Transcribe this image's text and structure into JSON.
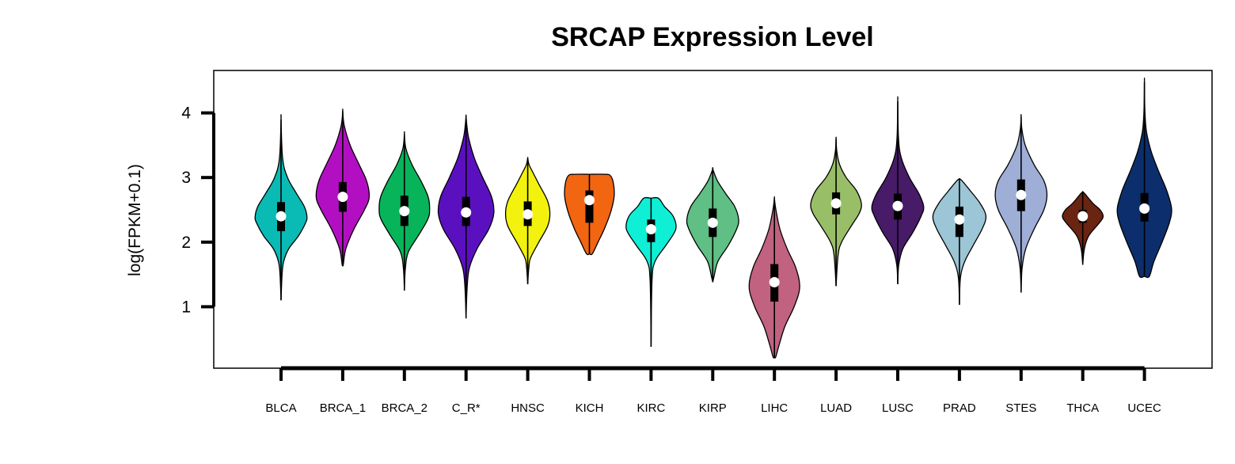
{
  "chart_data": {
    "type": "violin",
    "title": "SRCAP Expression Level",
    "xlabel": "",
    "ylabel": "log(FPKM+0.1)",
    "ylim": [
      0,
      4.55
    ],
    "yticks": [
      1,
      2,
      3,
      4
    ],
    "grid": false,
    "legend": "none",
    "categories": [
      "BLCA",
      "BRCA_1",
      "BRCA_2",
      "C_R*",
      "HNSC",
      "KICH",
      "KIRC",
      "KIRP",
      "LIHC",
      "LUAD",
      "LUSC",
      "PRAD",
      "STES",
      "THCA",
      "UCEC"
    ],
    "colors": [
      "#0ABAB5",
      "#B30FC2",
      "#08B45A",
      "#5B10BF",
      "#F2F20E",
      "#F26511",
      "#0FEFD6",
      "#5FBF84",
      "#C06280",
      "#98BE67",
      "#471B68",
      "#9CC5D5",
      "#9FAED6",
      "#6A2412",
      "#0C2E6C"
    ],
    "violins": [
      {
        "min": 1.1,
        "max": 3.9,
        "q1": 2.17,
        "median": 2.4,
        "q3": 2.62,
        "width": 0.42,
        "profile": [
          [
            1.5,
            0.04
          ],
          [
            1.7,
            0.1
          ],
          [
            1.9,
            0.3
          ],
          [
            2.1,
            0.68
          ],
          [
            2.3,
            0.95
          ],
          [
            2.4,
            1.0
          ],
          [
            2.55,
            0.9
          ],
          [
            2.75,
            0.6
          ],
          [
            3.0,
            0.25
          ],
          [
            3.3,
            0.06
          ]
        ]
      },
      {
        "min": 1.65,
        "max": 4.03,
        "q1": 2.47,
        "median": 2.7,
        "q3": 2.93,
        "width": 0.43,
        "profile": [
          [
            1.65,
            0.02
          ],
          [
            1.9,
            0.12
          ],
          [
            2.2,
            0.42
          ],
          [
            2.5,
            0.82
          ],
          [
            2.7,
            1.0
          ],
          [
            2.95,
            0.9
          ],
          [
            3.2,
            0.62
          ],
          [
            3.5,
            0.28
          ],
          [
            3.8,
            0.06
          ]
        ]
      },
      {
        "min": 1.25,
        "max": 3.68,
        "q1": 2.25,
        "median": 2.48,
        "q3": 2.72,
        "width": 0.41,
        "profile": [
          [
            1.6,
            0.04
          ],
          [
            1.85,
            0.16
          ],
          [
            2.1,
            0.55
          ],
          [
            2.35,
            0.92
          ],
          [
            2.5,
            1.0
          ],
          [
            2.7,
            0.94
          ],
          [
            2.95,
            0.65
          ],
          [
            3.2,
            0.3
          ],
          [
            3.45,
            0.06
          ]
        ]
      },
      {
        "min": 0.82,
        "max": 3.95,
        "q1": 2.25,
        "median": 2.46,
        "q3": 2.7,
        "width": 0.45,
        "profile": [
          [
            1.3,
            0.04
          ],
          [
            1.6,
            0.12
          ],
          [
            1.9,
            0.4
          ],
          [
            2.2,
            0.82
          ],
          [
            2.45,
            1.0
          ],
          [
            2.7,
            0.92
          ],
          [
            3.0,
            0.6
          ],
          [
            3.3,
            0.3
          ],
          [
            3.6,
            0.1
          ],
          [
            3.8,
            0.03
          ]
        ]
      },
      {
        "min": 1.35,
        "max": 3.3,
        "q1": 2.25,
        "median": 2.43,
        "q3": 2.63,
        "width": 0.36,
        "profile": [
          [
            1.6,
            0.05
          ],
          [
            1.75,
            0.12
          ],
          [
            2.0,
            0.5
          ],
          [
            2.25,
            0.9
          ],
          [
            2.45,
            1.0
          ],
          [
            2.65,
            0.88
          ],
          [
            2.9,
            0.5
          ],
          [
            3.1,
            0.2
          ],
          [
            3.2,
            0.06
          ]
        ]
      },
      {
        "min": 1.82,
        "max": 3.05,
        "q1": 2.3,
        "median": 2.65,
        "q3": 2.8,
        "width": 0.4,
        "profile": [
          [
            1.82,
            0.12
          ],
          [
            2.0,
            0.35
          ],
          [
            2.2,
            0.6
          ],
          [
            2.45,
            0.85
          ],
          [
            2.7,
            1.0
          ],
          [
            2.9,
            0.98
          ],
          [
            3.03,
            0.85
          ],
          [
            3.05,
            0.6
          ]
        ]
      },
      {
        "min": 0.38,
        "max": 2.68,
        "q1": 2.0,
        "median": 2.2,
        "q3": 2.35,
        "width": 0.4,
        "profile": [
          [
            1.4,
            0.04
          ],
          [
            1.7,
            0.16
          ],
          [
            1.95,
            0.6
          ],
          [
            2.2,
            1.0
          ],
          [
            2.4,
            0.9
          ],
          [
            2.55,
            0.55
          ],
          [
            2.68,
            0.3
          ]
        ]
      },
      {
        "min": 1.38,
        "max": 3.13,
        "q1": 2.08,
        "median": 2.3,
        "q3": 2.52,
        "width": 0.42,
        "profile": [
          [
            1.45,
            0.04
          ],
          [
            1.7,
            0.2
          ],
          [
            1.95,
            0.6
          ],
          [
            2.2,
            0.92
          ],
          [
            2.35,
            1.0
          ],
          [
            2.55,
            0.85
          ],
          [
            2.75,
            0.5
          ],
          [
            2.95,
            0.18
          ]
        ]
      },
      {
        "min": 0.22,
        "max": 2.68,
        "q1": 1.08,
        "median": 1.38,
        "q3": 1.66,
        "width": 0.41,
        "profile": [
          [
            0.22,
            0.05
          ],
          [
            0.4,
            0.18
          ],
          [
            0.7,
            0.42
          ],
          [
            1.0,
            0.78
          ],
          [
            1.3,
            1.0
          ],
          [
            1.6,
            0.85
          ],
          [
            1.9,
            0.5
          ],
          [
            2.2,
            0.22
          ],
          [
            2.5,
            0.06
          ]
        ]
      },
      {
        "min": 1.32,
        "max": 3.6,
        "q1": 2.43,
        "median": 2.6,
        "q3": 2.77,
        "width": 0.41,
        "profile": [
          [
            1.8,
            0.08
          ],
          [
            2.0,
            0.22
          ],
          [
            2.25,
            0.6
          ],
          [
            2.45,
            0.92
          ],
          [
            2.6,
            1.0
          ],
          [
            2.8,
            0.8
          ],
          [
            3.0,
            0.4
          ],
          [
            3.2,
            0.14
          ],
          [
            3.4,
            0.03
          ]
        ]
      },
      {
        "min": 1.35,
        "max": 4.18,
        "q1": 2.35,
        "median": 2.56,
        "q3": 2.75,
        "width": 0.42,
        "profile": [
          [
            1.65,
            0.04
          ],
          [
            1.9,
            0.2
          ],
          [
            2.15,
            0.58
          ],
          [
            2.4,
            0.9
          ],
          [
            2.55,
            1.0
          ],
          [
            2.75,
            0.82
          ],
          [
            3.0,
            0.45
          ],
          [
            3.3,
            0.14
          ],
          [
            3.6,
            0.03
          ]
        ]
      },
      {
        "min": 1.03,
        "max": 2.98,
        "q1": 2.08,
        "median": 2.35,
        "q3": 2.55,
        "width": 0.43,
        "profile": [
          [
            1.45,
            0.04
          ],
          [
            1.7,
            0.2
          ],
          [
            1.95,
            0.52
          ],
          [
            2.2,
            0.85
          ],
          [
            2.4,
            1.0
          ],
          [
            2.6,
            0.78
          ],
          [
            2.8,
            0.4
          ],
          [
            2.95,
            0.1
          ]
        ]
      },
      {
        "min": 1.22,
        "max": 3.95,
        "q1": 2.48,
        "median": 2.73,
        "q3": 2.97,
        "width": 0.42,
        "profile": [
          [
            1.6,
            0.04
          ],
          [
            1.9,
            0.18
          ],
          [
            2.2,
            0.5
          ],
          [
            2.5,
            0.88
          ],
          [
            2.73,
            1.0
          ],
          [
            2.95,
            0.88
          ],
          [
            3.2,
            0.5
          ],
          [
            3.5,
            0.16
          ],
          [
            3.75,
            0.03
          ]
        ]
      },
      {
        "min": 1.65,
        "max": 2.78,
        "q1": 2.3,
        "median": 2.4,
        "q3": 2.5,
        "width": 0.33,
        "profile": [
          [
            1.9,
            0.08
          ],
          [
            2.1,
            0.3
          ],
          [
            2.3,
            0.82
          ],
          [
            2.4,
            1.0
          ],
          [
            2.5,
            0.85
          ],
          [
            2.6,
            0.5
          ],
          [
            2.75,
            0.1
          ]
        ]
      },
      {
        "min": 1.47,
        "max": 4.48,
        "q1": 2.32,
        "median": 2.52,
        "q3": 2.76,
        "width": 0.44,
        "profile": [
          [
            1.47,
            0.18
          ],
          [
            1.7,
            0.35
          ],
          [
            2.0,
            0.65
          ],
          [
            2.3,
            0.92
          ],
          [
            2.52,
            1.0
          ],
          [
            2.8,
            0.82
          ],
          [
            3.1,
            0.52
          ],
          [
            3.4,
            0.25
          ],
          [
            3.7,
            0.08
          ],
          [
            4.0,
            0.02
          ]
        ]
      }
    ]
  }
}
